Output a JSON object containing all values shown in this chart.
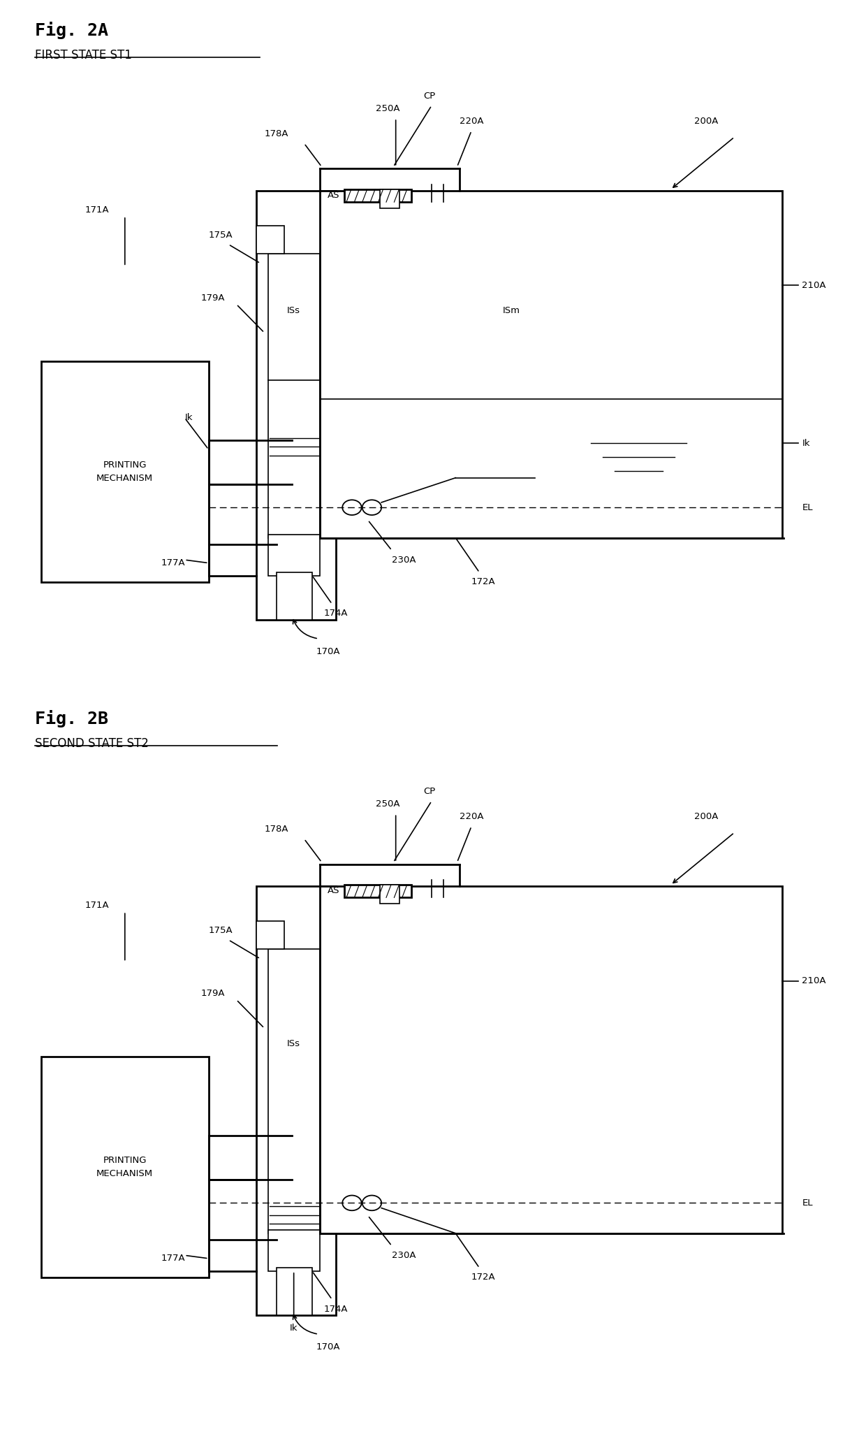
{
  "bg_color": "#ffffff",
  "lc": "#000000",
  "fig_width": 12.4,
  "fig_height": 20.52,
  "figA_title": "Fig. 2A",
  "figA_subtitle": "FIRST STATE ST1",
  "figB_title": "Fig. 2B",
  "figB_subtitle": "SECOND STATE ST2"
}
